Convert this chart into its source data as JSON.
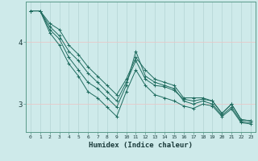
{
  "xlabel": "Humidex (Indice chaleur)",
  "ylabel": "",
  "bg_color": "#ceeaea",
  "grid_color_v": "#b8d8d8",
  "grid_color_h": "#e8c8c8",
  "line_color": "#1e6b5e",
  "xlim": [
    -0.5,
    23.5
  ],
  "ylim": [
    2.55,
    4.65
  ],
  "yticks": [
    3,
    4
  ],
  "xticks": [
    0,
    1,
    2,
    3,
    4,
    5,
    6,
    7,
    8,
    9,
    10,
    11,
    12,
    13,
    14,
    15,
    16,
    17,
    18,
    19,
    20,
    21,
    22,
    23
  ],
  "series": [
    [
      4.5,
      4.5,
      4.3,
      4.2,
      3.95,
      3.8,
      3.6,
      3.45,
      3.3,
      3.15,
      3.4,
      3.75,
      3.55,
      3.4,
      3.35,
      3.3,
      3.1,
      3.1,
      3.1,
      3.05,
      2.85,
      3.0,
      2.75,
      2.73
    ],
    [
      4.5,
      4.5,
      4.25,
      4.1,
      3.85,
      3.7,
      3.5,
      3.35,
      3.2,
      3.05,
      3.35,
      3.7,
      3.4,
      3.3,
      3.28,
      3.22,
      3.08,
      3.05,
      3.08,
      3.05,
      2.85,
      3.0,
      2.75,
      2.73
    ],
    [
      4.5,
      4.5,
      4.2,
      4.05,
      3.75,
      3.55,
      3.35,
      3.25,
      3.1,
      2.95,
      3.3,
      3.85,
      3.45,
      3.35,
      3.3,
      3.25,
      3.05,
      3.0,
      3.05,
      3.0,
      2.82,
      2.95,
      2.72,
      2.7
    ],
    [
      4.5,
      4.5,
      4.15,
      3.95,
      3.65,
      3.45,
      3.2,
      3.1,
      2.95,
      2.8,
      3.2,
      3.55,
      3.3,
      3.15,
      3.1,
      3.05,
      2.97,
      2.93,
      3.0,
      2.97,
      2.8,
      2.92,
      2.7,
      2.68
    ]
  ]
}
